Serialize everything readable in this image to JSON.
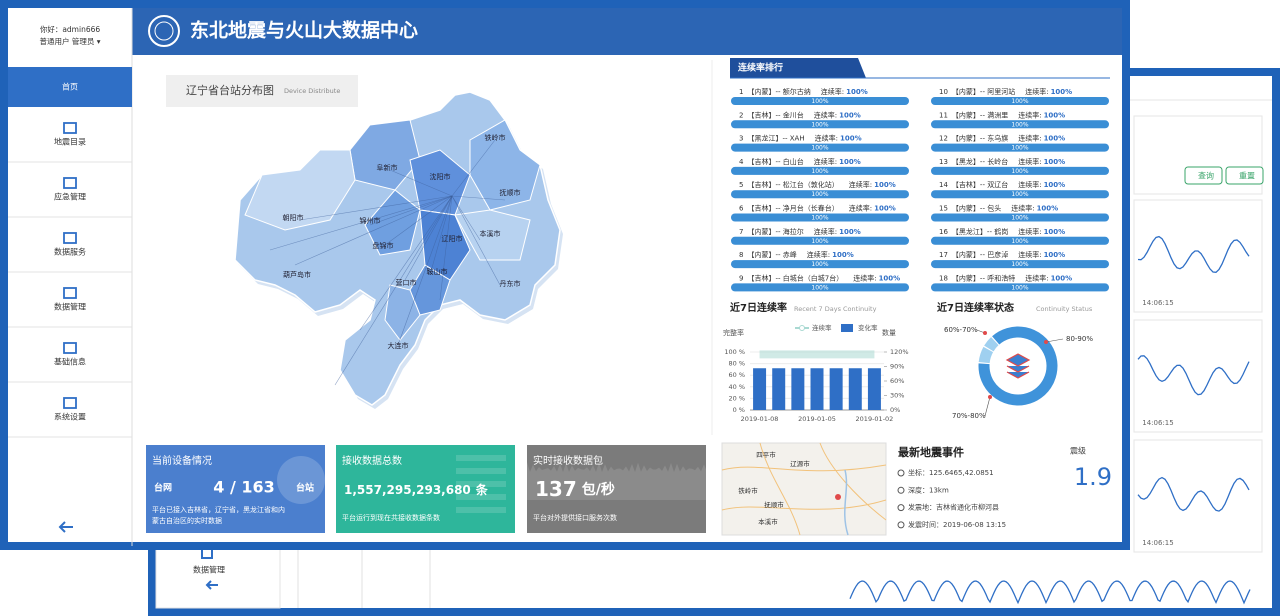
{
  "sidebar": {
    "greeting": "你好：admin666",
    "role": "普通用户 管理员 ▾",
    "menu": [
      "首页",
      "地震目录",
      "应急管理",
      "数据服务",
      "数据管理",
      "基础信息",
      "系统设置"
    ]
  },
  "header": {
    "title": "东北地震与火山大数据中心"
  },
  "map": {
    "title": "辽宁省台站分布图",
    "subtitle": "Device Distribute",
    "cities": [
      "铁岭市",
      "阜新市",
      "沈阳市",
      "抚顺市",
      "朝阳市",
      "锦州市",
      "辽阳市",
      "本溪市",
      "盘锦市",
      "鞍山市",
      "葫芦岛市",
      "营口市",
      "丹东市",
      "大连市"
    ]
  },
  "ranking": {
    "title": "连续率排行",
    "items": [
      {
        "rank": 1,
        "name": "【内蒙】-- 额尔古纳",
        "label": "连续率:",
        "value": 100,
        "value_label": "100%"
      },
      {
        "rank": 2,
        "name": "【吉林】-- 金川台",
        "label": "连续率:",
        "value": 100,
        "value_label": "100%"
      },
      {
        "rank": 3,
        "name": "【黑龙江】-- XAH",
        "label": "连续率:",
        "value": 100,
        "value_label": "100%"
      },
      {
        "rank": 4,
        "name": "【吉林】-- 白山台",
        "label": "连续率:",
        "value": 100,
        "value_label": "100%"
      },
      {
        "rank": 5,
        "name": "【吉林】-- 松江台（敦化站）",
        "label": "连续率:",
        "value": 100,
        "value_label": "100%"
      },
      {
        "rank": 6,
        "name": "【吉林】-- 净月台（长春台）",
        "label": "连续率:",
        "value": 100,
        "value_label": "100%"
      },
      {
        "rank": 7,
        "name": "【内蒙】-- 海拉尔",
        "label": "连续率:",
        "value": 100,
        "value_label": "100%"
      },
      {
        "rank": 8,
        "name": "【内蒙】-- 赤峰",
        "label": "连续率:",
        "value": 100,
        "value_label": "100%"
      },
      {
        "rank": 9,
        "name": "【吉林】-- 白城台（白城7台）",
        "label": "连续率:",
        "value": 100,
        "value_label": "100%"
      },
      {
        "rank": 10,
        "name": "【内蒙】-- 阿里河站",
        "label": "连续率:",
        "value": 100,
        "value_label": "100%"
      },
      {
        "rank": 11,
        "name": "【内蒙】-- 满洲里",
        "label": "连续率:",
        "value": 100,
        "value_label": "100%"
      },
      {
        "rank": 12,
        "name": "【内蒙】-- 东乌旗",
        "label": "连续率:",
        "value": 100,
        "value_label": "100%"
      },
      {
        "rank": 13,
        "name": "【黑龙】-- 长岭台",
        "label": "连续率:",
        "value": 100,
        "value_label": "100%"
      },
      {
        "rank": 14,
        "name": "【吉林】-- 双辽台",
        "label": "连续率:",
        "value": 100,
        "value_label": "100%"
      },
      {
        "rank": 15,
        "name": "【内蒙】-- 包头",
        "label": "连续率:",
        "value": 100,
        "value_label": "100%"
      },
      {
        "rank": 16,
        "name": "【黑龙江】-- 鹤岗",
        "label": "连续率:",
        "value": 100,
        "value_label": "100%"
      },
      {
        "rank": 17,
        "name": "【内蒙】-- 巴彦淖",
        "label": "连续率:",
        "value": 100,
        "value_label": "100%"
      },
      {
        "rank": 18,
        "name": "【内蒙】-- 呼和浩特",
        "label": "连续率:",
        "value": 100,
        "value_label": "100%"
      }
    ]
  },
  "chart_data": [
    {
      "type": "bar",
      "title": "近7日连续率",
      "subtitle": "Recent 7 Days Continuity",
      "y_label": "完整率",
      "y2_label": "数量",
      "categories": [
        "2019-01-08",
        null,
        null,
        "2019-01-05",
        null,
        null,
        "2019-01-02"
      ],
      "series": [
        {
          "name": "连续率",
          "type": "line",
          "color": "#a9d9d2",
          "axis": "y2",
          "values": [
            115,
            115,
            115,
            115,
            115,
            115,
            115
          ]
        },
        {
          "name": "变化率",
          "type": "bar",
          "color": "#2f6fc6",
          "values": [
            72,
            72,
            72,
            72,
            72,
            72,
            72
          ]
        }
      ],
      "ylim": [
        0,
        100
      ],
      "yticks": [
        {
          "value": 0,
          "label": "0 %"
        },
        {
          "value": 20,
          "label": "20 %"
        },
        {
          "value": 40,
          "label": "40 %"
        },
        {
          "value": 60,
          "label": "60 %"
        },
        {
          "value": 80,
          "label": "80 %"
        },
        {
          "value": 100,
          "label": "100 %"
        }
      ],
      "y2lim": [
        0,
        120
      ],
      "y2ticks": [
        {
          "value": 0,
          "label": "0%"
        },
        {
          "value": 30,
          "label": "30%"
        },
        {
          "value": 60,
          "label": "60%"
        },
        {
          "value": 90,
          "label": "90%"
        },
        {
          "value": 120,
          "label": "120%"
        }
      ],
      "grid": true
    },
    {
      "type": "pie",
      "title": "近7日连续率状态",
      "subtitle": "Continuity Status",
      "categories": [
        "60%-70%",
        "80-90%",
        "70%-80%"
      ],
      "values": [
        5,
        88,
        7
      ],
      "colors": [
        "#9fd0f0",
        "#3f93da",
        "#9fd0f0"
      ],
      "donut": true
    }
  ],
  "cards": [
    {
      "title": "当前设备情况",
      "left": "台网",
      "main": "4 / 163",
      "right": "台站",
      "lines": [
        "平台已接入吉林省，辽宁省，黑龙江省和内",
        "蒙古自治区的实时数据"
      ]
    },
    {
      "title": "接收数据总数",
      "main": "1,557,295,293,680",
      "right": "条",
      "lines": [
        "平台运行到现在共接收数据条数"
      ]
    },
    {
      "title": "实时接收数据包",
      "main": "137",
      "right": "包/秒",
      "lines": [
        "平台对外提供接口服务次数"
      ]
    }
  ],
  "earthquake": {
    "map_labels": [
      "四平市",
      "辽源市",
      "铁岭市",
      "抚顺市",
      "本溪市"
    ],
    "title": "最新地震事件",
    "rows": [
      "坐标：125.6465,42.0851",
      "深度：13km",
      "发震地：吉林省通化市柳河县",
      "发震时间：2019-06-08 13:15"
    ],
    "magnitude_label": "震级",
    "magnitude": 1.9
  },
  "background_window": {
    "buttons": [
      "查询",
      "重置"
    ],
    "times": [
      "14:06:15",
      "14:06:15",
      "14:06:15"
    ],
    "menu_item": "数据管理"
  }
}
